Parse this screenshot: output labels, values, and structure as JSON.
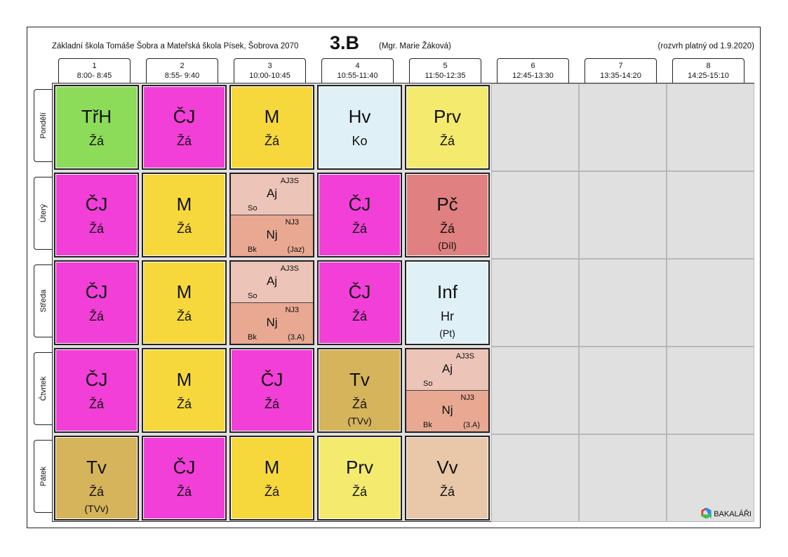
{
  "header": {
    "school": "Základní škola Tomáše Šobra a Mateřská škola Písek, Šobrova 2070",
    "class_name": "3.B",
    "class_teacher": "(Mgr. Marie Žáková)",
    "validity": "(rozvrh platný od 1.9.2020)"
  },
  "periods": [
    {
      "num": "1",
      "time": "8:00- 8:45"
    },
    {
      "num": "2",
      "time": "8:55- 9:40"
    },
    {
      "num": "3",
      "time": "10:00-10:45"
    },
    {
      "num": "4",
      "time": "10:55-11:40"
    },
    {
      "num": "5",
      "time": "11:50-12:35"
    },
    {
      "num": "6",
      "time": "12:45-13:30"
    },
    {
      "num": "7",
      "time": "13:35-14:20"
    },
    {
      "num": "8",
      "time": "14:25-15:10"
    }
  ],
  "days": [
    "Pondělí",
    "Úterý",
    "Středa",
    "Čtvrtek",
    "Pátek"
  ],
  "colors": {
    "TrH": "#8cdc5a",
    "CJ": "#f23fd8",
    "M": "#f7d83c",
    "Hv": "#dff0f7",
    "Prv": "#f4ea6e",
    "Aj": "#ecc4b8",
    "Nj": "#e8a892",
    "Pc": "#e08080",
    "Inf": "#dff0f7",
    "Tv": "#d6b45c",
    "Vv": "#e8c8a8",
    "empty": "#e0e0e0"
  },
  "timetable": [
    [
      {
        "subject": "TřH",
        "teacher": "Žá",
        "color": "TrH"
      },
      {
        "subject": "ČJ",
        "teacher": "Žá",
        "color": "CJ"
      },
      {
        "subject": "M",
        "teacher": "Žá",
        "color": "M"
      },
      {
        "subject": "Hv",
        "teacher": "Ko",
        "color": "Hv"
      },
      {
        "subject": "Prv",
        "teacher": "Žá",
        "color": "Prv"
      },
      null,
      null,
      null
    ],
    [
      {
        "subject": "ČJ",
        "teacher": "Žá",
        "color": "CJ"
      },
      {
        "subject": "M",
        "teacher": "Žá",
        "color": "M"
      },
      {
        "split": [
          {
            "subject": "Aj",
            "group": "AJ3S",
            "teacher": "So",
            "room": "",
            "color": "Aj"
          },
          {
            "subject": "Nj",
            "group": "NJ3",
            "teacher": "Bk",
            "room": "(Jaz)",
            "color": "Nj"
          }
        ]
      },
      {
        "subject": "ČJ",
        "teacher": "Žá",
        "color": "CJ"
      },
      {
        "subject": "Pč",
        "teacher": "Žá",
        "room": "(Díl)",
        "color": "Pc"
      },
      null,
      null,
      null
    ],
    [
      {
        "subject": "ČJ",
        "teacher": "Žá",
        "color": "CJ"
      },
      {
        "subject": "M",
        "teacher": "Žá",
        "color": "M"
      },
      {
        "split": [
          {
            "subject": "Aj",
            "group": "AJ3S",
            "teacher": "So",
            "room": "",
            "color": "Aj"
          },
          {
            "subject": "Nj",
            "group": "NJ3",
            "teacher": "Bk",
            "room": "(3.A)",
            "color": "Nj"
          }
        ]
      },
      {
        "subject": "ČJ",
        "teacher": "Žá",
        "color": "CJ"
      },
      {
        "subject": "Inf",
        "teacher": "Hr",
        "room": "(Pt)",
        "color": "Inf"
      },
      null,
      null,
      null
    ],
    [
      {
        "subject": "ČJ",
        "teacher": "Žá",
        "color": "CJ"
      },
      {
        "subject": "M",
        "teacher": "Žá",
        "color": "M"
      },
      {
        "subject": "ČJ",
        "teacher": "Žá",
        "color": "CJ"
      },
      {
        "subject": "Tv",
        "teacher": "Žá",
        "room": "(TVv)",
        "color": "Tv"
      },
      {
        "split": [
          {
            "subject": "Aj",
            "group": "AJ3S",
            "teacher": "So",
            "room": "",
            "color": "Aj"
          },
          {
            "subject": "Nj",
            "group": "NJ3",
            "teacher": "Bk",
            "room": "(3.A)",
            "color": "Nj"
          }
        ]
      },
      null,
      null,
      null
    ],
    [
      {
        "subject": "Tv",
        "teacher": "Žá",
        "room": "(TVv)",
        "color": "Tv"
      },
      {
        "subject": "ČJ",
        "teacher": "Žá",
        "color": "CJ"
      },
      {
        "subject": "M",
        "teacher": "Žá",
        "color": "M"
      },
      {
        "subject": "Prv",
        "teacher": "Žá",
        "color": "Prv"
      },
      {
        "subject": "Vv",
        "teacher": "Žá",
        "color": "Vv"
      },
      null,
      null,
      null
    ]
  ],
  "logo": {
    "text": "BAKALÁŘI",
    "icon": "bakalari-logo-icon"
  }
}
